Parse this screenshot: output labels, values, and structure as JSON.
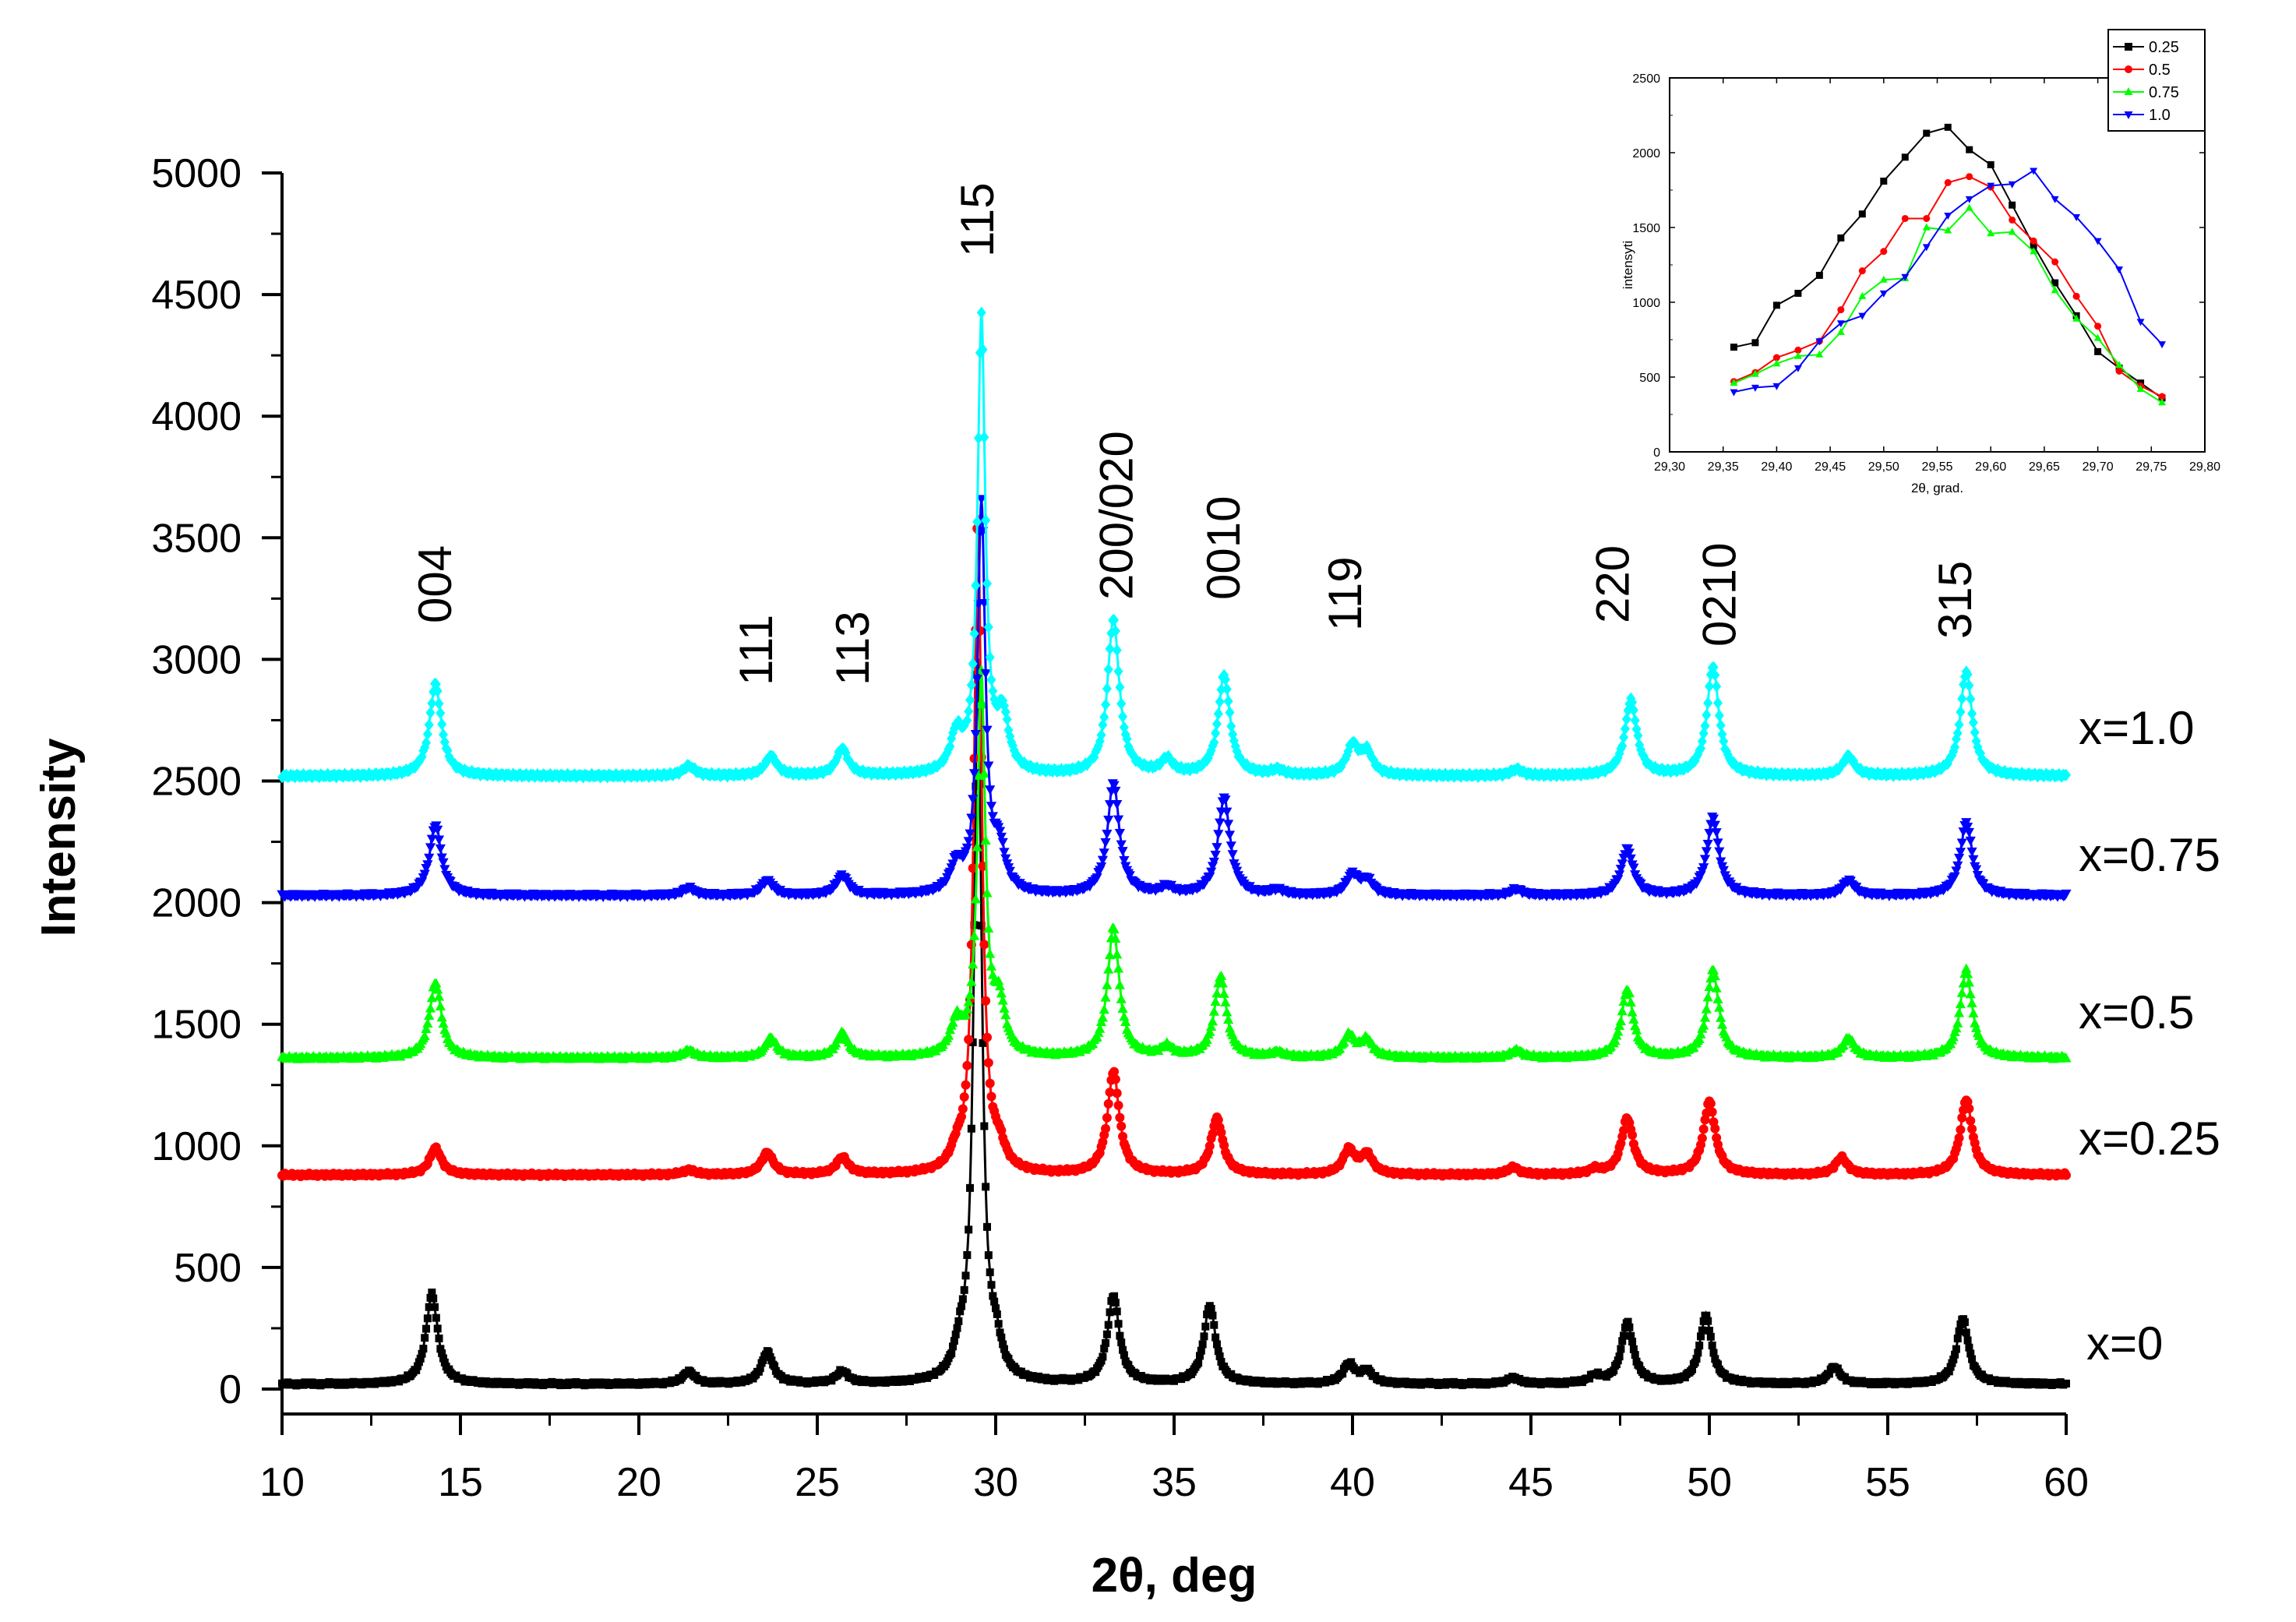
{
  "chart_data": [
    {
      "type": "line",
      "xlabel": "2θ, deg",
      "ylabel": "Intensity",
      "xlim": [
        10,
        60
      ],
      "ylim": [
        0,
        5000
      ],
      "x_ticks": [
        "10",
        "15",
        "20",
        "25",
        "30",
        "35",
        "40",
        "45",
        "50",
        "55",
        "60"
      ],
      "y_ticks": [
        "0",
        "500",
        "1000",
        "1500",
        "2000",
        "2500",
        "3000",
        "3500",
        "4000",
        "4500",
        "5000"
      ],
      "peak_labels": [
        {
          "text": "004",
          "x": 14.3
        },
        {
          "text": "111",
          "x": 23.3
        },
        {
          "text": "113",
          "x": 26.0
        },
        {
          "text": "115",
          "x": 29.5
        },
        {
          "text": "200/020",
          "x": 33.4
        },
        {
          "text": "0010",
          "x": 36.4
        },
        {
          "text": "119",
          "x": 39.8
        },
        {
          "text": "220",
          "x": 47.3
        },
        {
          "text": "0210",
          "x": 50.3
        },
        {
          "text": "315",
          "x": 56.9
        }
      ],
      "series": [
        {
          "name": "x=0",
          "color": "#000000",
          "marker": "square",
          "baseline": 20,
          "peaks": [
            [
              14.2,
              370
            ],
            [
              21.4,
              50
            ],
            [
              23.6,
              130
            ],
            [
              25.7,
              50
            ],
            [
              29.0,
              100
            ],
            [
              29.5,
              2950
            ],
            [
              30.0,
              120
            ],
            [
              33.3,
              360
            ],
            [
              36.0,
              320
            ],
            [
              39.9,
              80
            ],
            [
              40.4,
              50
            ],
            [
              44.5,
              25
            ],
            [
              46.8,
              30
            ],
            [
              47.7,
              250
            ],
            [
              49.9,
              280
            ],
            [
              53.5,
              70
            ],
            [
              57.1,
              270
            ]
          ]
        },
        {
          "name": "x=0.25",
          "color": "#ff0000",
          "marker": "circle",
          "baseline": 880,
          "peaks": [
            [
              14.3,
              110
            ],
            [
              21.4,
              20
            ],
            [
              23.6,
              90
            ],
            [
              25.7,
              70
            ],
            [
              28.9,
              60
            ],
            [
              29.5,
              2700
            ],
            [
              30.1,
              80
            ],
            [
              33.3,
              420
            ],
            [
              36.2,
              230
            ],
            [
              39.9,
              100
            ],
            [
              40.4,
              80
            ],
            [
              44.5,
              30
            ],
            [
              46.8,
              20
            ],
            [
              47.7,
              230
            ],
            [
              50.0,
              300
            ],
            [
              53.7,
              70
            ],
            [
              57.2,
              310
            ]
          ]
        },
        {
          "name": "x=0.5",
          "color": "#00ff00",
          "marker": "triangle-up",
          "baseline": 1360,
          "peaks": [
            [
              14.3,
              310
            ],
            [
              21.4,
              30
            ],
            [
              23.7,
              80
            ],
            [
              25.7,
              100
            ],
            [
              28.9,
              130
            ],
            [
              29.6,
              1550
            ],
            [
              30.1,
              200
            ],
            [
              33.3,
              530
            ],
            [
              34.8,
              40
            ],
            [
              36.3,
              330
            ],
            [
              37.9,
              20
            ],
            [
              39.9,
              90
            ],
            [
              40.4,
              70
            ],
            [
              44.6,
              30
            ],
            [
              47.7,
              280
            ],
            [
              50.1,
              360
            ],
            [
              53.9,
              80
            ],
            [
              57.2,
              360
            ]
          ]
        },
        {
          "name": "x=0.75",
          "color": "#0000ff",
          "marker": "triangle-down",
          "baseline": 2030,
          "peaks": [
            [
              14.3,
              290
            ],
            [
              21.4,
              30
            ],
            [
              23.6,
              60
            ],
            [
              25.7,
              80
            ],
            [
              28.9,
              110
            ],
            [
              29.6,
              1600
            ],
            [
              30.1,
              170
            ],
            [
              33.3,
              460
            ],
            [
              34.8,
              30
            ],
            [
              36.4,
              400
            ],
            [
              37.9,
              20
            ],
            [
              40.0,
              80
            ],
            [
              40.4,
              60
            ],
            [
              44.6,
              25
            ],
            [
              47.7,
              190
            ],
            [
              50.1,
              320
            ],
            [
              53.9,
              60
            ],
            [
              57.2,
              300
            ]
          ]
        },
        {
          "name": "x=1.0",
          "color": "#00ffff",
          "marker": "diamond",
          "baseline": 2520,
          "peaks": [
            [
              14.3,
              380
            ],
            [
              21.4,
              40
            ],
            [
              23.7,
              80
            ],
            [
              25.7,
              110
            ],
            [
              28.9,
              150
            ],
            [
              29.6,
              1870
            ],
            [
              30.2,
              220
            ],
            [
              33.3,
              640
            ],
            [
              34.8,
              60
            ],
            [
              36.4,
              410
            ],
            [
              37.9,
              20
            ],
            [
              40.0,
              120
            ],
            [
              40.4,
              90
            ],
            [
              44.6,
              25
            ],
            [
              47.8,
              310
            ],
            [
              50.1,
              450
            ],
            [
              53.9,
              80
            ],
            [
              57.2,
              430
            ]
          ]
        }
      ]
    },
    {
      "type": "line",
      "xlabel": "2θ, grad.",
      "ylabel": "intensyti",
      "xlim": [
        29.3,
        29.8
      ],
      "ylim": [
        0,
        2500
      ],
      "x_ticks": [
        "29,30",
        "29,35",
        "29,40",
        "29,45",
        "29,50",
        "29,55",
        "29,60",
        "29,65",
        "29,70",
        "29,75",
        "29,80"
      ],
      "y_ticks": [
        "0",
        "500",
        "1000",
        "1500",
        "2000",
        "2500"
      ],
      "x": [
        29.36,
        29.38,
        29.4,
        29.42,
        29.44,
        29.46,
        29.48,
        29.5,
        29.52,
        29.54,
        29.56,
        29.58,
        29.6,
        29.62,
        29.64,
        29.66,
        29.68,
        29.7,
        29.72,
        29.74,
        29.76
      ],
      "series": [
        {
          "name": "0.25",
          "color": "#000000",
          "marker": "square",
          "values": [
            700,
            730,
            980,
            1060,
            1180,
            1430,
            1590,
            1810,
            1970,
            2130,
            2170,
            2020,
            1920,
            1650,
            1380,
            1130,
            910,
            670,
            560,
            460,
            360
          ]
        },
        {
          "name": "0.5",
          "color": "#ff0000",
          "marker": "circle",
          "values": [
            470,
            530,
            630,
            680,
            740,
            950,
            1210,
            1340,
            1560,
            1560,
            1800,
            1840,
            1770,
            1550,
            1410,
            1270,
            1040,
            840,
            540,
            440,
            370
          ]
        },
        {
          "name": "0.75",
          "color": "#00ff00",
          "marker": "triangle-up",
          "values": [
            460,
            520,
            590,
            640,
            650,
            800,
            1040,
            1150,
            1160,
            1500,
            1480,
            1630,
            1460,
            1470,
            1340,
            1080,
            890,
            760,
            580,
            420,
            330
          ]
        },
        {
          "name": "1.0",
          "color": "#0000ff",
          "marker": "triangle-down",
          "values": [
            400,
            430,
            440,
            560,
            740,
            860,
            910,
            1060,
            1170,
            1370,
            1580,
            1690,
            1780,
            1790,
            1880,
            1690,
            1570,
            1410,
            1220,
            870,
            720
          ]
        }
      ]
    }
  ]
}
